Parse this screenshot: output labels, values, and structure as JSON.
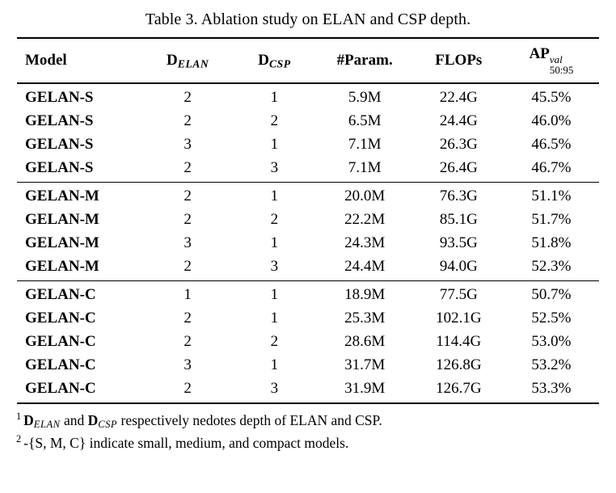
{
  "caption": "Table 3. Ablation study on ELAN and CSP depth.",
  "table": {
    "headers": {
      "model": "Model",
      "d_elan": {
        "base": "D",
        "sub": "ELAN"
      },
      "d_csp": {
        "base": "D",
        "sub": "CSP"
      },
      "params": "#Param.",
      "flops": "FLOPs",
      "ap": {
        "base": "AP",
        "sup": "val",
        "sub": "50:95"
      }
    },
    "groups": [
      {
        "rows": [
          [
            "GELAN-S",
            "2",
            "1",
            "5.9M",
            "22.4G",
            "45.5%"
          ],
          [
            "GELAN-S",
            "2",
            "2",
            "6.5M",
            "24.4G",
            "46.0%"
          ],
          [
            "GELAN-S",
            "3",
            "1",
            "7.1M",
            "26.3G",
            "46.5%"
          ],
          [
            "GELAN-S",
            "2",
            "3",
            "7.1M",
            "26.4G",
            "46.7%"
          ]
        ]
      },
      {
        "rows": [
          [
            "GELAN-M",
            "2",
            "1",
            "20.0M",
            "76.3G",
            "51.1%"
          ],
          [
            "GELAN-M",
            "2",
            "2",
            "22.2M",
            "85.1G",
            "51.7%"
          ],
          [
            "GELAN-M",
            "3",
            "1",
            "24.3M",
            "93.5G",
            "51.8%"
          ],
          [
            "GELAN-M",
            "2",
            "3",
            "24.4M",
            "94.0G",
            "52.3%"
          ]
        ]
      },
      {
        "rows": [
          [
            "GELAN-C",
            "1",
            "1",
            "18.9M",
            "77.5G",
            "50.7%"
          ],
          [
            "GELAN-C",
            "2",
            "1",
            "25.3M",
            "102.1G",
            "52.5%"
          ],
          [
            "GELAN-C",
            "2",
            "2",
            "28.6M",
            "114.4G",
            "53.0%"
          ],
          [
            "GELAN-C",
            "3",
            "1",
            "31.7M",
            "126.8G",
            "53.2%"
          ],
          [
            "GELAN-C",
            "2",
            "3",
            "31.9M",
            "126.7G",
            "53.3%"
          ]
        ]
      }
    ]
  },
  "footnotes": [
    {
      "marker": "1",
      "d1_base": "D",
      "d1_sub": "ELAN",
      "mid": " and ",
      "d2_base": "D",
      "d2_sub": "CSP",
      "rest": " respectively nedotes depth of ELAN and CSP."
    },
    {
      "marker": "2",
      "text": "-{S, M, C} indicate small, medium, and compact models."
    }
  ]
}
